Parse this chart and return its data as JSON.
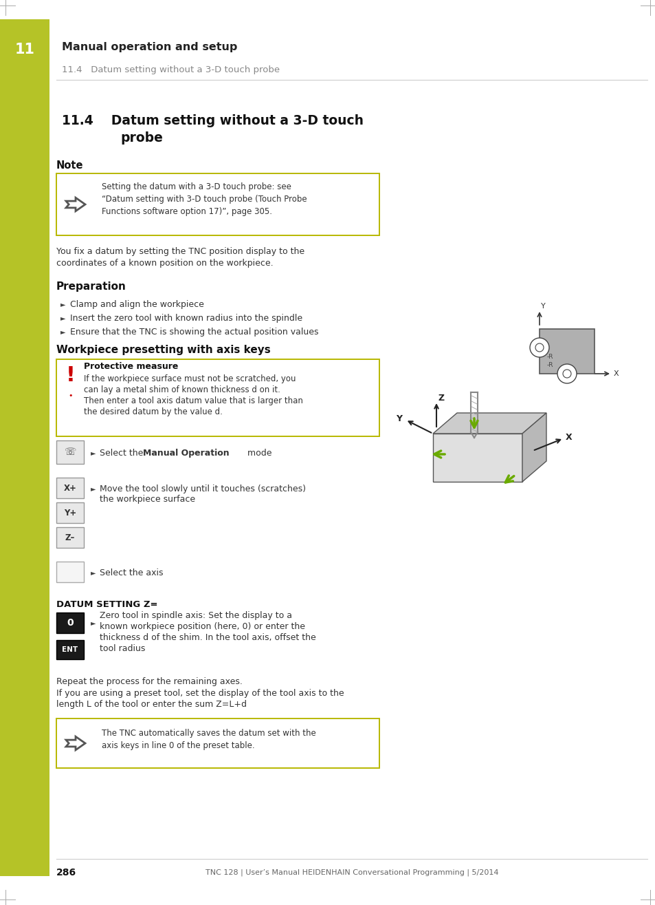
{
  "bg_color": "#ffffff",
  "sidebar_color": "#b5c327",
  "chapter_num": "11",
  "chapter_title": "Manual operation and setup",
  "section_header": "11.4   Datum setting without a 3-D touch probe",
  "section_title_line1": "11.4    Datum setting without a 3-D touch",
  "section_title_line2": "         probe",
  "note_label": "Note",
  "note_line1": "Setting the datum with a 3-D touch probe: see",
  "note_line2": "“Datum setting with 3-D touch probe (Touch Probe",
  "note_line3": "Functions software option 17)”, page 305.",
  "body_text1": "You fix a datum by setting the TNC position display to the",
  "body_text2": "coordinates of a known position on the workpiece.",
  "prep_header": "Preparation",
  "prep_items": [
    "Clamp and align the workpiece",
    "Insert the zero tool with known radius into the spindle",
    "Ensure that the TNC is showing the actual position values"
  ],
  "workpiece_header": "Workpiece presetting with axis keys",
  "prot_header": "Protective measure",
  "prot_text1": "If the workpiece surface must not be scratched, you",
  "prot_text2": "can lay a metal shim of known thickness d on it.",
  "prot_text3": "Then enter a tool axis datum value that is larger than",
  "prot_text4": "the desired datum by the value d.",
  "step1_pre": "Select the ",
  "step1_bold": "Manual Operation",
  "step1_post": " mode",
  "step2_text1": "Move the tool slowly until it touches (scratches)",
  "step2_text2": "the workpiece surface",
  "step3_text": "Select the axis",
  "datum_label": "DATUM SETTING Z=",
  "datum_text1": "Zero tool in spindle axis: Set the display to a",
  "datum_text2": "known workpiece position (here, 0) or enter the",
  "datum_text3": "thickness d of the shim. In the tool axis, offset the",
  "datum_text4": "tool radius",
  "repeat1": "Repeat the process for the remaining axes.",
  "repeat2": "If you are using a preset tool, set the display of the tool axis to the",
  "repeat3": "length L of the tool or enter the sum Z=L+d",
  "auto1": "The TNC automatically saves the datum set with the",
  "auto2": "axis keys in line 0 of the preset table.",
  "footer_page": "286",
  "footer_text": "TNC 128 | User’s Manual HEIDENHAIN Conversational Programming | 5/2014",
  "note_border": "#b8b800",
  "prot_border": "#b8b800",
  "auto_border": "#b8b800"
}
